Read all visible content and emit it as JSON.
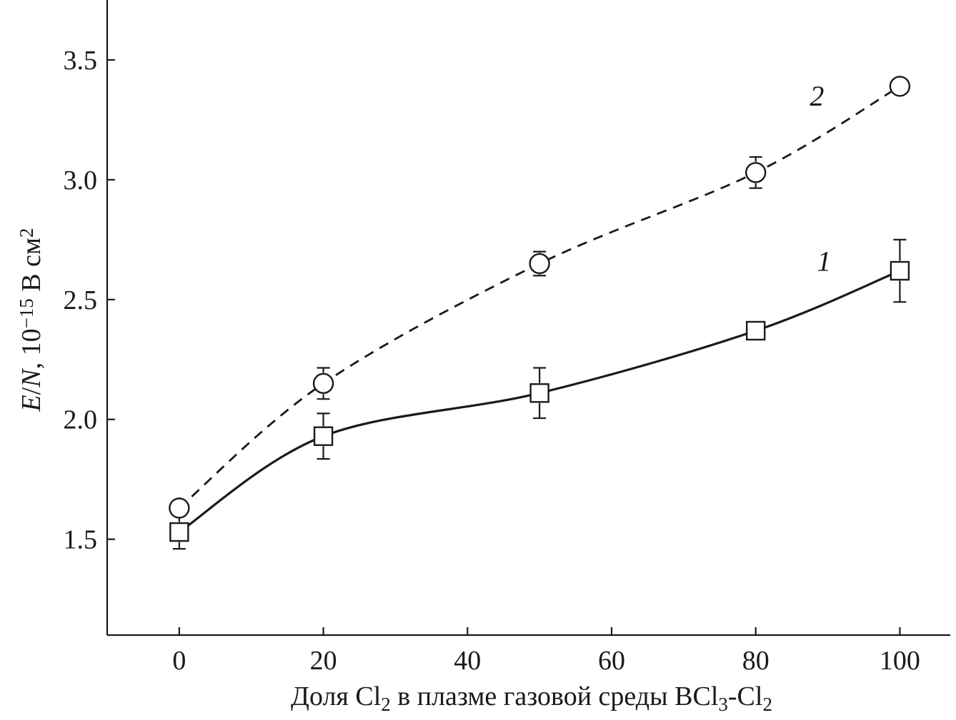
{
  "chart_data": {
    "type": "line",
    "xlabel": {
      "parts": [
        {
          "text": "Доля Cl",
          "sub": false
        },
        {
          "text": "2",
          "sub": true
        },
        {
          "text": " в плазме газовой среды BCl",
          "sub": false
        },
        {
          "text": "3",
          "sub": true
        },
        {
          "text": "-Cl",
          "sub": false
        },
        {
          "text": "2",
          "sub": true
        }
      ]
    },
    "ylabel": {
      "parts": [
        {
          "text": "E",
          "style": "italic"
        },
        {
          "text": "/",
          "style": "normal"
        },
        {
          "text": "N",
          "style": "italic"
        },
        {
          "text": ", 10",
          "style": "normal"
        },
        {
          "text": "−15",
          "style": "sup"
        },
        {
          "text": " В см",
          "style": "normal"
        },
        {
          "text": "2",
          "style": "sup"
        }
      ]
    },
    "xlim": [
      -10,
      107
    ],
    "ylim": [
      1.1,
      3.75
    ],
    "xticks": [
      0,
      20,
      40,
      60,
      80,
      100
    ],
    "xtick_labels": [
      "0",
      "20",
      "40",
      "60",
      "80",
      "100"
    ],
    "yticks": [
      1.5,
      2.0,
      2.5,
      3.0,
      3.5
    ],
    "ytick_labels": [
      "1.5",
      "2.0",
      "2.5",
      "3.0",
      "3.5"
    ],
    "grid": false,
    "series": [
      {
        "label": "1",
        "marker": "square",
        "line": "solid",
        "x": [
          0,
          20,
          50,
          80,
          100
        ],
        "y": [
          1.53,
          1.93,
          2.11,
          2.37,
          2.62
        ],
        "err": [
          0.07,
          0.095,
          0.105,
          0.0,
          0.13
        ]
      },
      {
        "label": "2",
        "marker": "circle",
        "line": "dashed",
        "x": [
          0,
          20,
          50,
          80,
          100
        ],
        "y": [
          1.63,
          2.15,
          2.65,
          3.03,
          3.39
        ],
        "err": [
          0.0,
          0.065,
          0.05,
          0.065,
          0.0
        ]
      }
    ]
  }
}
